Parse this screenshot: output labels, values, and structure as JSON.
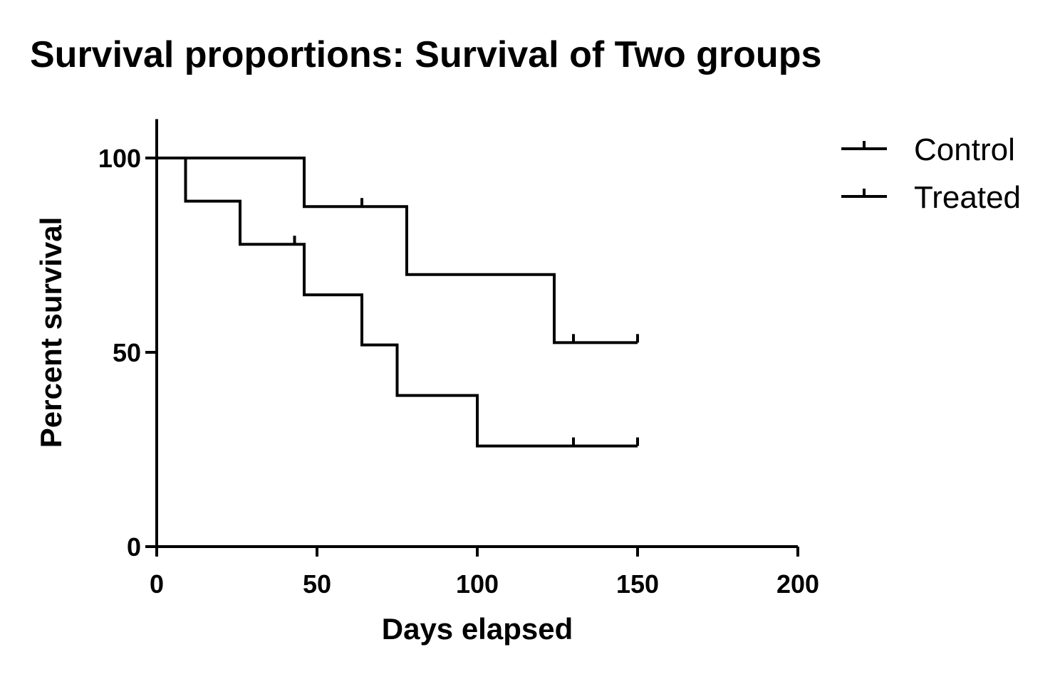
{
  "chart_data": {
    "type": "line",
    "subtype": "kaplan-meier-step",
    "title": "Survival proportions: Survival of Two groups",
    "xlabel": "Days elapsed",
    "ylabel": "Percent survival",
    "xlim": [
      0,
      200
    ],
    "ylim": [
      0,
      110
    ],
    "xticks": [
      0,
      50,
      100,
      150,
      200
    ],
    "yticks": [
      0,
      50,
      100
    ],
    "xtick_labels": [
      "0",
      "50",
      "100",
      "150",
      "200"
    ],
    "ytick_labels": [
      "0",
      "50",
      "100"
    ],
    "grid": false,
    "legend_position": "top-right",
    "colors": {
      "line": "#000000",
      "background": "#ffffff"
    },
    "series": [
      {
        "name": "Control",
        "steps": [
          {
            "x": 0,
            "y": 100
          },
          {
            "x": 46,
            "y": 87.5
          },
          {
            "x": 78,
            "y": 70
          },
          {
            "x": 124,
            "y": 52.5
          }
        ],
        "end_x": 150,
        "censored": [
          {
            "x": 64,
            "y": 87.5
          },
          {
            "x": 130,
            "y": 52.5
          },
          {
            "x": 150,
            "y": 52.5
          }
        ]
      },
      {
        "name": "Treated",
        "steps": [
          {
            "x": 0,
            "y": 100
          },
          {
            "x": 9,
            "y": 88.9
          },
          {
            "x": 26,
            "y": 77.8
          },
          {
            "x": 46,
            "y": 64.8
          },
          {
            "x": 64,
            "y": 51.9
          },
          {
            "x": 75,
            "y": 38.9
          },
          {
            "x": 100,
            "y": 25.9
          }
        ],
        "end_x": 150,
        "censored": [
          {
            "x": 43,
            "y": 77.8
          },
          {
            "x": 130,
            "y": 25.9
          },
          {
            "x": 150,
            "y": 25.9
          }
        ]
      }
    ]
  }
}
